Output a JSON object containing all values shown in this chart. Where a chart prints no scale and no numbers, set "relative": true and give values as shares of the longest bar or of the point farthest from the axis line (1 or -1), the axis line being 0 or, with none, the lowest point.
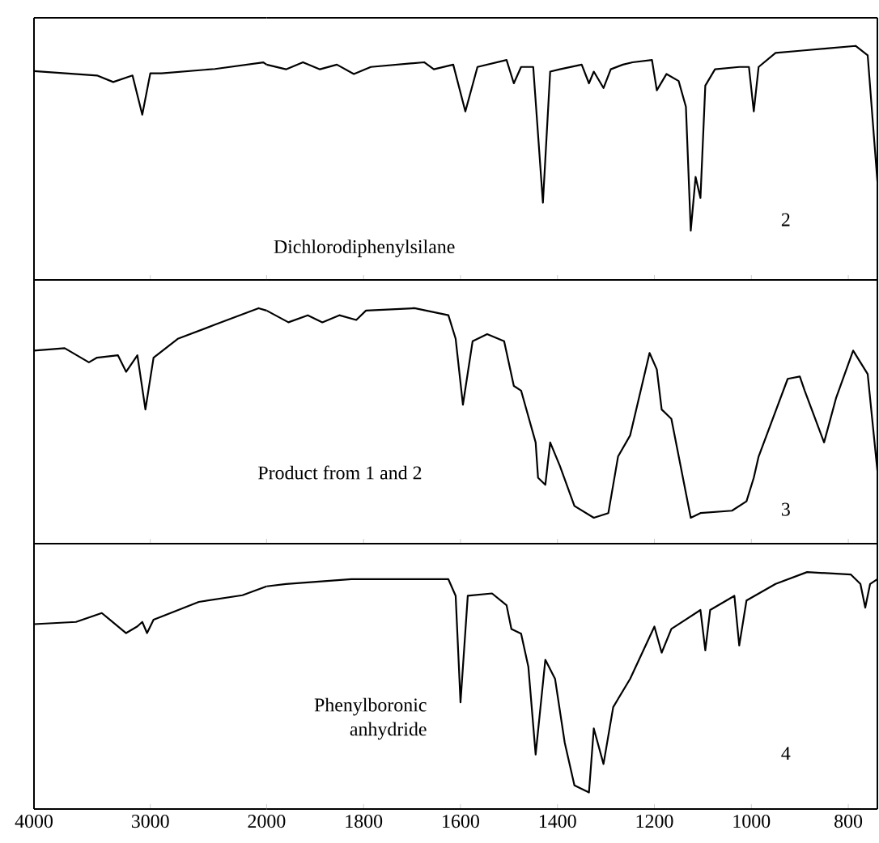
{
  "chart_data": [
    {
      "type": "line",
      "relative": true,
      "xlim": [
        4000,
        2000
      ],
      "xticks": [
        4000,
        3000
      ],
      "tick_labels": false,
      "x": [
        4000,
        3458,
        3319,
        3153,
        3069,
        3000,
        2903,
        2444,
        2028,
        2000
      ],
      "series": [
        {
          "color": "#000000",
          "values": [
            0.96,
            0.94,
            0.91,
            0.94,
            0.76,
            0.95,
            0.95,
            0.97,
            1,
            0.99
          ]
        }
      ]
    },
    {
      "type": "line",
      "relative": true,
      "xlim": [
        2000,
        740
      ],
      "xticks": [
        2000,
        1800,
        1600,
        1400,
        1200,
        1000,
        800
      ],
      "tick_labels": false,
      "x": [
        2000,
        1960,
        1925,
        1890,
        1855,
        1820,
        1785,
        1675,
        1655,
        1615,
        1590,
        1565,
        1505,
        1490,
        1475,
        1450,
        1430,
        1415,
        1395,
        1350,
        1335,
        1325,
        1305,
        1290,
        1265,
        1245,
        1205,
        1195,
        1175,
        1150,
        1135,
        1125,
        1115,
        1105,
        1095,
        1075,
        1025,
        1005,
        995,
        985,
        950,
        895,
        840,
        785,
        760,
        740
      ],
      "series": [
        {
          "color": "#000000",
          "values": [
            0.92,
            0.9,
            0.93,
            0.9,
            0.92,
            0.88,
            0.91,
            0.93,
            0.9,
            0.92,
            0.72,
            0.91,
            0.94,
            0.84,
            0.91,
            0.91,
            0.33,
            0.89,
            0.9,
            0.92,
            0.84,
            0.89,
            0.82,
            0.9,
            0.92,
            0.93,
            0.94,
            0.81,
            0.88,
            0.85,
            0.74,
            0.21,
            0.44,
            0.35,
            0.83,
            0.9,
            0.91,
            0.91,
            0.72,
            0.91,
            0.97,
            0.98,
            0.99,
            1,
            0.96,
            0.42
          ]
        }
      ],
      "annotations": [
        "Dichlorodiphenylsilane",
        "2"
      ]
    },
    {
      "type": "line",
      "relative": true,
      "xlim": [
        4000,
        2000
      ],
      "xticks": [
        4000,
        3000
      ],
      "tick_labels": false,
      "x": [
        4000,
        3736,
        3528,
        3458,
        3278,
        3208,
        3111,
        3042,
        2972,
        2764,
        2444,
        2069,
        2000
      ],
      "series": [
        {
          "color": "#000000",
          "values": [
            0.82,
            0.83,
            0.77,
            0.79,
            0.8,
            0.73,
            0.8,
            0.57,
            0.79,
            0.87,
            0.93,
            1,
            0.99
          ]
        }
      ]
    },
    {
      "type": "line",
      "relative": true,
      "xlim": [
        2000,
        740
      ],
      "xticks": [
        2000,
        1800,
        1600,
        1400,
        1200,
        1000,
        800
      ],
      "tick_labels": false,
      "x": [
        2000,
        1955,
        1915,
        1885,
        1850,
        1815,
        1795,
        1695,
        1625,
        1610,
        1595,
        1575,
        1545,
        1510,
        1490,
        1475,
        1445,
        1440,
        1425,
        1415,
        1395,
        1365,
        1325,
        1295,
        1275,
        1250,
        1210,
        1195,
        1185,
        1165,
        1125,
        1105,
        1040,
        1010,
        995,
        985,
        925,
        900,
        890,
        850,
        825,
        790,
        760,
        740
      ],
      "series": [
        {
          "color": "#000000",
          "values": [
            0.99,
            0.94,
            0.97,
            0.94,
            0.97,
            0.95,
            0.99,
            1,
            0.97,
            0.87,
            0.59,
            0.86,
            0.89,
            0.86,
            0.67,
            0.65,
            0.43,
            0.28,
            0.25,
            0.43,
            0.33,
            0.16,
            0.11,
            0.13,
            0.37,
            0.46,
            0.81,
            0.74,
            0.57,
            0.53,
            0.11,
            0.13,
            0.14,
            0.18,
            0.28,
            0.37,
            0.7,
            0.71,
            0.65,
            0.43,
            0.62,
            0.82,
            0.72,
            0.31
          ]
        }
      ],
      "annotations": [
        "Product from 1 and 2",
        "3"
      ]
    },
    {
      "type": "line",
      "relative": true,
      "xlim": [
        4000,
        2000
      ],
      "xticks": [
        4000,
        3000
      ],
      "tick_labels": "x",
      "x": [
        4000,
        3639,
        3417,
        3208,
        3111,
        3069,
        3028,
        2972,
        2583,
        2208,
        2000
      ],
      "series": [
        {
          "color": "#000000",
          "values": [
            0.83,
            0.84,
            0.88,
            0.79,
            0.82,
            0.84,
            0.79,
            0.85,
            0.93,
            0.96,
            1
          ]
        }
      ]
    },
    {
      "type": "line",
      "relative": true,
      "xlim": [
        2000,
        740
      ],
      "xticks": [
        2000,
        1800,
        1600,
        1400,
        1200,
        1000,
        800
      ],
      "tick_labels": "x",
      "x": [
        2000,
        1960,
        1825,
        1625,
        1610,
        1600,
        1585,
        1535,
        1505,
        1495,
        1475,
        1460,
        1445,
        1425,
        1405,
        1385,
        1365,
        1335,
        1325,
        1305,
        1285,
        1250,
        1200,
        1185,
        1165,
        1105,
        1095,
        1085,
        1035,
        1025,
        1010,
        950,
        885,
        795,
        775,
        765,
        755,
        740
      ],
      "series": [
        {
          "color": "#000000",
          "values": [
            0.94,
            0.95,
            0.97,
            0.97,
            0.9,
            0.45,
            0.9,
            0.91,
            0.86,
            0.76,
            0.74,
            0.6,
            0.23,
            0.63,
            0.55,
            0.28,
            0.1,
            0.07,
            0.34,
            0.19,
            0.43,
            0.55,
            0.77,
            0.66,
            0.76,
            0.84,
            0.67,
            0.84,
            0.9,
            0.69,
            0.88,
            0.95,
            1,
            0.99,
            0.95,
            0.85,
            0.95,
            0.97
          ]
        }
      ],
      "annotations": [
        "Phenylboronic anhydride",
        "4"
      ]
    }
  ]
}
